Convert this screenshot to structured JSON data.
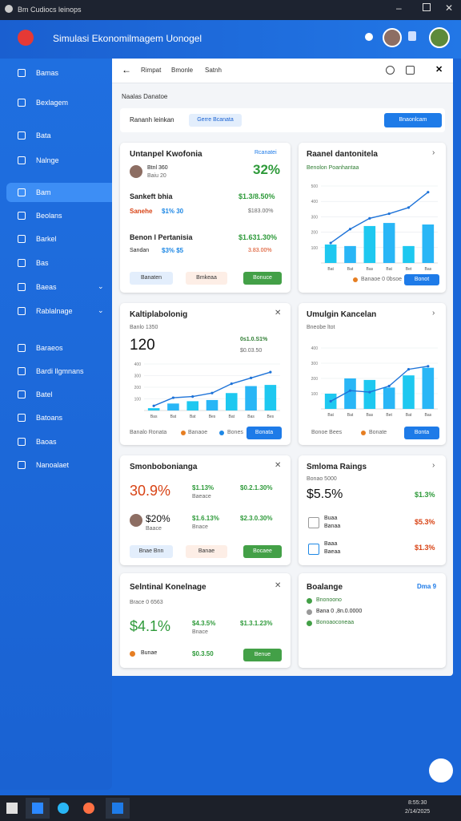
{
  "window": {
    "title": "Bm Cudiocs leinops"
  },
  "header": {
    "title": "Simulasi Ekonomilmagem Uonogel"
  },
  "sidebar": {
    "items": [
      "Bamas",
      "Bexlagem",
      "Bata",
      "Nalnge",
      "Bam",
      "Beolans",
      "Barkel",
      "Bas",
      "Baeas",
      "Rablalnage",
      "Baraeos",
      "Bardi llgmnans",
      "Batel",
      "Batoans",
      "Baoas",
      "Nanoalaet"
    ]
  },
  "toolbar": {
    "tabs": [
      "Rimpat",
      "Bmonle",
      "Satnh"
    ]
  },
  "breadcrumb": "Naalas Danatoe",
  "filter": {
    "label": "Rananh leinkan",
    "chip": "Gerre Bcanata",
    "button": "Bnaonlcam"
  },
  "cards": [
    {
      "title": "Untanpel Kwofonia",
      "link": "Rcanatei",
      "rows": [
        {
          "name": "Btnl 360",
          "sub": "Baiu 20",
          "value": "32%"
        },
        {
          "name": "Sankeft bhia",
          "value": "$1.3/8.50%",
          "sub1": "Sanehe",
          "sub2": "$1% 30",
          "sub3": "$183.00%"
        },
        {
          "name": "Benon l Pertanisia",
          "value": "$1.631.30%",
          "sub1": "Sandan",
          "sub2": "$3% $5",
          "sub3": "3.83.00%"
        }
      ],
      "buttons": [
        "Banaten",
        "Bmkeaa",
        "Bonuce"
      ]
    },
    {
      "title": "Raanel dantonitela",
      "subtitle": "Benolon Poanhantaa",
      "legend": "Banaoe 0 0bsoe",
      "button": "Bonot",
      "chart": {
        "ylim": [
          0,
          500
        ],
        "yticks": [
          100,
          200,
          300,
          400,
          500
        ],
        "categories": [
          "Bat",
          "Bat",
          "Bas",
          "Bat",
          "Bet",
          "Bas"
        ],
        "bars": [
          120,
          110,
          240,
          260,
          110,
          250
        ],
        "line": [
          130,
          220,
          290,
          320,
          360,
          460
        ]
      }
    },
    {
      "title": "Kaltiplabolonig",
      "subtitle": "Banlo 1350",
      "big": "120",
      "note1": "0s1.0.S1%",
      "note2": "$0.03.50",
      "legend1": "Banalo Ronata",
      "legend2": "Banaoe",
      "legend3": "Bones",
      "button": "Bonata",
      "chart": {
        "ylim": [
          0,
          400
        ],
        "yticks": [
          100,
          200,
          300,
          400
        ],
        "categories": [
          "Bas",
          "Bat",
          "Bat",
          "Bes",
          "Bat",
          "Bas",
          "Bes"
        ],
        "bars": [
          20,
          60,
          80,
          90,
          150,
          210,
          220
        ],
        "line": [
          40,
          110,
          120,
          150,
          230,
          280,
          330
        ]
      }
    },
    {
      "title": "Umulgin Kancelan",
      "subtitle": "Bneobe ltot",
      "legend1": "Bonoe Bees",
      "legend2": "Bonate",
      "button": "Bonta",
      "chart": {
        "ylim": [
          0,
          400
        ],
        "yticks": [
          100,
          200,
          300,
          400
        ],
        "categories": [
          "Bat",
          "Bat",
          "Bas",
          "Bet",
          "Bat",
          "Bas"
        ],
        "bars": [
          100,
          200,
          190,
          140,
          220,
          270
        ],
        "line": [
          50,
          120,
          110,
          150,
          260,
          280
        ]
      }
    },
    {
      "title": "Smonbobonianga",
      "big": "30.9%",
      "v1": "$1.13%",
      "s1": "Baeace",
      "v2": "$0.2.1.30%",
      "big2": "$20%",
      "s2": "Baace",
      "v3": "$1.6.13%",
      "s3": "Bnace",
      "v4": "$2.3.0.30%",
      "buttons": [
        "Bnae Bnn",
        "Banae",
        "Bocaee"
      ]
    },
    {
      "title": "Smloma Raings",
      "subtitle": "Bonao 5000",
      "big": "$5.5%",
      "v1": "$1.3%",
      "r1a": "Buaa",
      "r1b": "Banaa",
      "v2": "$5.3%",
      "r2a": "Baaa",
      "r2b": "Baeaa",
      "v3": "$1.3%"
    },
    {
      "title": "Selntinal Konelnage",
      "subtitle": "Brace 0 6563",
      "big": "$4.1%",
      "v1": "$4.3.5%",
      "s1": "Bnace",
      "v2": "$1.3.1.23%",
      "foot1": "Bunae",
      "foot2": "$0.3.50",
      "button": "Benue"
    },
    {
      "title": "Boalange",
      "link": "Dma 9",
      "items": [
        "Bnonoono",
        "Bana 0 ,8n.0.0000",
        "Bonoaoconeaa"
      ]
    }
  ],
  "taskbar": {
    "time": "8:55:30",
    "date": "2/14/2025"
  }
}
